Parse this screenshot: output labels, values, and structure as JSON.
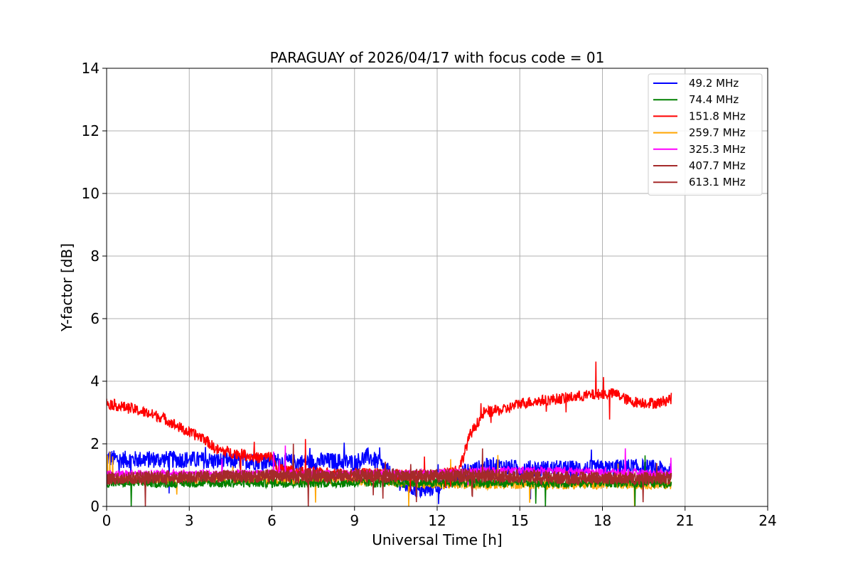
{
  "chart_data": {
    "type": "line",
    "title": "PARAGUAY of 2026/04/17 with focus code = 01",
    "xlabel": "Universal Time [h]",
    "ylabel": "Y-factor [dB]",
    "xlim": [
      0,
      24
    ],
    "ylim": [
      0,
      14
    ],
    "xticks": [
      0,
      3,
      6,
      9,
      12,
      15,
      18,
      21,
      24
    ],
    "yticks": [
      0,
      2,
      4,
      6,
      8,
      10,
      12,
      14
    ],
    "grid": true,
    "legend_position": "top-right",
    "series": [
      {
        "name": "  49.2 MHz",
        "color": "#0000ff",
        "noise": 0.28,
        "x": [
          0,
          0.5,
          1,
          2,
          3,
          4,
          5,
          6,
          7,
          8,
          9,
          9.5,
          10,
          10.5,
          11,
          11.5,
          12,
          12.5,
          13,
          14,
          15,
          16,
          17,
          18,
          19,
          20,
          20.5
        ],
        "y": [
          1.55,
          1.5,
          1.5,
          1.5,
          1.5,
          1.45,
          1.45,
          1.45,
          1.4,
          1.45,
          1.4,
          1.6,
          1.3,
          0.85,
          0.6,
          0.5,
          0.65,
          0.85,
          1.1,
          1.3,
          1.2,
          1.2,
          1.2,
          1.2,
          1.25,
          1.2,
          1.1
        ]
      },
      {
        "name": "  74.4 MHz",
        "color": "#008000",
        "noise": 0.15,
        "x": [
          0,
          2,
          4,
          6,
          8,
          10,
          12,
          14,
          16,
          18,
          20,
          20.5
        ],
        "y": [
          0.75,
          0.75,
          0.75,
          0.75,
          0.75,
          0.75,
          0.75,
          0.75,
          0.75,
          0.75,
          0.75,
          0.75
        ]
      },
      {
        "name": "151.8 MHz",
        "color": "#ff0000",
        "noise": 0.18,
        "x": [
          0,
          0.5,
          1,
          2,
          2.5,
          3,
          3.5,
          4,
          5,
          5.5,
          6,
          6.2,
          7,
          8,
          9,
          10,
          11,
          12,
          12.8,
          13.2,
          13.7,
          14.5,
          15,
          16,
          17,
          18,
          18.5,
          19,
          20,
          20.5
        ],
        "y": [
          3.3,
          3.2,
          3.1,
          2.85,
          2.6,
          2.35,
          2.2,
          1.8,
          1.65,
          1.55,
          1.6,
          1.2,
          1.1,
          1.05,
          1.05,
          1.05,
          1.0,
          1.0,
          1.2,
          2.3,
          3.0,
          3.1,
          3.3,
          3.4,
          3.5,
          3.6,
          3.6,
          3.35,
          3.3,
          3.45
        ]
      },
      {
        "name": "259.7 MHz",
        "color": "#ffa500",
        "noise": 0.15,
        "x": [
          0,
          2,
          4,
          6,
          8,
          10,
          12,
          14,
          16,
          18,
          20,
          20.5
        ],
        "y": [
          0.85,
          0.85,
          0.85,
          0.85,
          0.85,
          0.8,
          0.7,
          0.7,
          0.7,
          0.7,
          0.7,
          0.7
        ]
      },
      {
        "name": "325.3 MHz",
        "color": "#ff00ff",
        "noise": 0.12,
        "x": [
          0,
          2,
          4,
          6,
          8,
          10,
          12,
          14,
          16,
          18,
          20,
          20.5
        ],
        "y": [
          1.05,
          1.05,
          1.05,
          1.05,
          1.05,
          1.05,
          1.05,
          1.15,
          1.15,
          1.1,
          1.05,
          1.05
        ]
      },
      {
        "name": "407.7 MHz",
        "color": "#a52a2a",
        "noise": 0.2,
        "x": [
          0,
          2,
          4,
          6,
          8,
          10,
          12,
          14,
          16,
          18,
          20,
          20.5
        ],
        "y": [
          0.9,
          0.9,
          0.95,
          0.95,
          0.95,
          0.95,
          0.95,
          0.95,
          0.9,
          0.9,
          0.9,
          0.9
        ]
      },
      {
        "name": "613.1 MHz",
        "color": "#a52a2a",
        "noise": 0.2,
        "x": [
          0,
          2,
          4,
          6,
          8,
          10,
          12,
          14,
          16,
          18,
          20,
          20.5
        ],
        "y": [
          0.9,
          0.95,
          0.95,
          1.0,
          1.0,
          1.0,
          1.0,
          1.0,
          0.95,
          0.9,
          0.9,
          0.9
        ]
      }
    ]
  }
}
